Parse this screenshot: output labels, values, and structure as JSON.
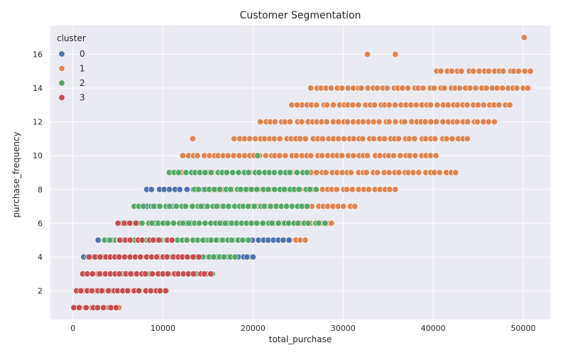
{
  "chart_data": {
    "type": "scatter",
    "title": "Customer Segmentation",
    "xlabel": "total_purchase",
    "ylabel": "purchase_frequency",
    "xlim": [
      -2500,
      53000
    ],
    "ylim": [
      0.3,
      17.7
    ],
    "xticks": [
      0,
      10000,
      20000,
      30000,
      40000,
      50000
    ],
    "xtick_labels": [
      "0",
      "10000",
      "20000",
      "30000",
      "40000",
      "50000"
    ],
    "yticks": [
      2,
      4,
      6,
      8,
      10,
      12,
      14,
      16
    ],
    "ytick_labels": [
      "2",
      "4",
      "6",
      "8",
      "10",
      "12",
      "14",
      "16"
    ],
    "grid": true,
    "legend": {
      "title": "cluster",
      "position": "top-left",
      "entries": [
        {
          "label": "0",
          "color": "#4c72b0"
        },
        {
          "label": "1",
          "color": "#dd8452"
        },
        {
          "label": "2",
          "color": "#55a868"
        },
        {
          "label": "3",
          "color": "#c44e52"
        }
      ]
    },
    "background": "#eaeaf2",
    "series": [
      {
        "name": "0",
        "color": "#4c72b0",
        "bands": [
          {
            "y": 3,
            "x_start": 4200,
            "x_end": 13800
          },
          {
            "y": 4,
            "x_start": 1200,
            "x_end": 20000
          },
          {
            "y": 5,
            "x_start": 2800,
            "x_end": 24000
          },
          {
            "y": 6,
            "x_start": 5000,
            "x_end": 21000
          },
          {
            "y": 7,
            "x_start": 7500,
            "x_end": 19000
          },
          {
            "y": 8,
            "x_start": 8200,
            "x_end": 14500
          }
        ]
      },
      {
        "name": "1",
        "color": "#dd8452",
        "bands": [
          {
            "y": 1,
            "x_start": 200,
            "x_end": 5100
          },
          {
            "y": 2,
            "x_start": 600,
            "x_end": 10100
          },
          {
            "y": 3,
            "x_start": 1600,
            "x_end": 14800
          },
          {
            "y": 4,
            "x_start": 4000,
            "x_end": 19600
          },
          {
            "y": 5,
            "x_start": 7400,
            "x_end": 25800
          },
          {
            "y": 6,
            "x_start": 10000,
            "x_end": 28700
          },
          {
            "y": 7,
            "x_start": 11700,
            "x_end": 31300
          },
          {
            "y": 8,
            "x_start": 13700,
            "x_end": 35800
          },
          {
            "y": 9,
            "x_start": 11500,
            "x_end": 42500
          },
          {
            "y": 10,
            "x_start": 12200,
            "x_end": 40300
          },
          {
            "y": 11,
            "x_start": 17900,
            "x_end": 43800
          },
          {
            "y": 12,
            "x_start": 20800,
            "x_end": 46800
          },
          {
            "y": 13,
            "x_start": 24300,
            "x_end": 48500
          },
          {
            "y": 14,
            "x_start": 26400,
            "x_end": 50500
          },
          {
            "y": 15,
            "x_start": 40400,
            "x_end": 50800
          }
        ],
        "points": [
          [
            13300,
            11
          ],
          [
            32700,
            16
          ],
          [
            35800,
            16
          ],
          [
            50100,
            17
          ],
          [
            24300,
            13
          ],
          [
            24900,
            13
          ],
          [
            42500,
            9
          ]
        ]
      },
      {
        "name": "2",
        "color": "#55a868",
        "bands": [
          {
            "y": 2,
            "x_start": 3800,
            "x_end": 10400
          },
          {
            "y": 3,
            "x_start": 5500,
            "x_end": 15500
          },
          {
            "y": 4,
            "x_start": 2800,
            "x_end": 18000
          },
          {
            "y": 5,
            "x_start": 3500,
            "x_end": 19500
          },
          {
            "y": 6,
            "x_start": 6000,
            "x_end": 28000
          },
          {
            "y": 7,
            "x_start": 6800,
            "x_end": 26000
          },
          {
            "y": 8,
            "x_start": 13500,
            "x_end": 27000
          },
          {
            "y": 9,
            "x_start": 10700,
            "x_end": 26000
          }
        ],
        "points": [
          [
            20500,
            10
          ]
        ]
      },
      {
        "name": "3",
        "color": "#c44e52",
        "bands": [
          {
            "y": 1,
            "x_start": 100,
            "x_end": 4800
          },
          {
            "y": 2,
            "x_start": 400,
            "x_end": 10300
          },
          {
            "y": 3,
            "x_start": 1100,
            "x_end": 15300
          },
          {
            "y": 4,
            "x_start": 1800,
            "x_end": 14000
          },
          {
            "y": 5,
            "x_start": 5200,
            "x_end": 11000
          },
          {
            "y": 6,
            "x_start": 5000,
            "x_end": 7000
          }
        ]
      }
    ]
  }
}
